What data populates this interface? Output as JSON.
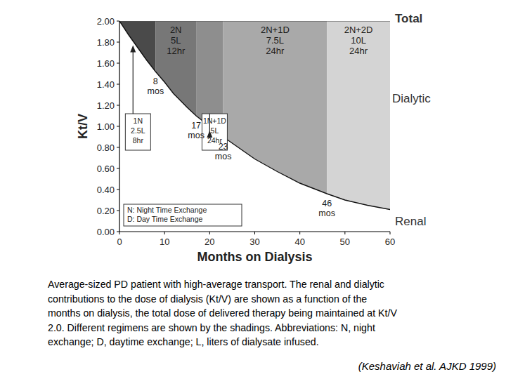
{
  "chart_data": {
    "type": "area",
    "xlabel": "Months on Dialysis",
    "ylabel": "Kt/V",
    "xlim": [
      0,
      60
    ],
    "ylim": [
      0,
      2
    ],
    "xticks": [
      0,
      10,
      20,
      30,
      40,
      50,
      60
    ],
    "yticks": [
      {
        "value": 0,
        "label": "0.00"
      },
      {
        "value": 0.2,
        "label": "0.20"
      },
      {
        "value": 0.4,
        "label": "0.40"
      },
      {
        "value": 0.6,
        "label": "0.60"
      },
      {
        "value": 0.8,
        "label": "0.80"
      },
      {
        "value": 1,
        "label": "1.00"
      },
      {
        "value": 1.2,
        "label": "1.20"
      },
      {
        "value": 1.4,
        "label": "1.40"
      },
      {
        "value": 1.6,
        "label": "1.60"
      },
      {
        "value": 1.8,
        "label": "1.80"
      },
      {
        "value": 2,
        "label": "2.00"
      }
    ],
    "total": {
      "name": "Total",
      "value": 2
    },
    "dialytic_label": "Dialytic",
    "series": [
      {
        "name": "Renal",
        "color": "#ffffff",
        "x": [
          0,
          2,
          4,
          6,
          8,
          10,
          12,
          15,
          17,
          20,
          23,
          26,
          30,
          35,
          40,
          46,
          50,
          55,
          60
        ],
        "values": [
          2.0,
          1.87,
          1.75,
          1.63,
          1.52,
          1.42,
          1.31,
          1.18,
          1.1,
          1.0,
          0.9,
          0.81,
          0.69,
          0.57,
          0.46,
          0.36,
          0.3,
          0.25,
          0.21
        ]
      }
    ],
    "regions": [
      {
        "label": [
          "1N",
          "2.5L",
          "8hr"
        ],
        "start": 0,
        "end": 8,
        "color": "#4a4a4a"
      },
      {
        "label": [
          "2N",
          "5L",
          "12hr"
        ],
        "start": 8,
        "end": 17,
        "start_label": "8 mos",
        "color": "#777777"
      },
      {
        "label": [
          "1N+1D",
          "5L",
          "24hr"
        ],
        "start": 17,
        "end": 23,
        "start_label": "17 mos",
        "color": "#8e8e8e"
      },
      {
        "label": [
          "2N+1D",
          "7.5L",
          "24hr"
        ],
        "start": 23,
        "end": 46,
        "start_label": "23 mos",
        "color": "#a9a9a9"
      },
      {
        "label": [
          "2N+2D",
          "10L",
          "24hr"
        ],
        "start": 46,
        "end": 60,
        "start_label": "46 mos",
        "color": "#d4d4d4"
      }
    ],
    "abbreviations": [
      "N: Night Time Exchange",
      "D: Day Time Exchange"
    ]
  },
  "caption": [
    "Average-sized PD patient with high-average transport. The renal and dialytic",
    "contributions to the dose of dialysis (Kt/V) are shown as a function of the",
    "months on dialysis, the total dose of delivered therapy being maintained at Kt/V",
    "2.0. Different regimens are shown by the shadings. Abbreviations: N, night",
    "exchange; D, daytime exchange; L, liters of dialysate infused."
  ],
  "source": "(Keshaviah et al. AJKD 1999)"
}
